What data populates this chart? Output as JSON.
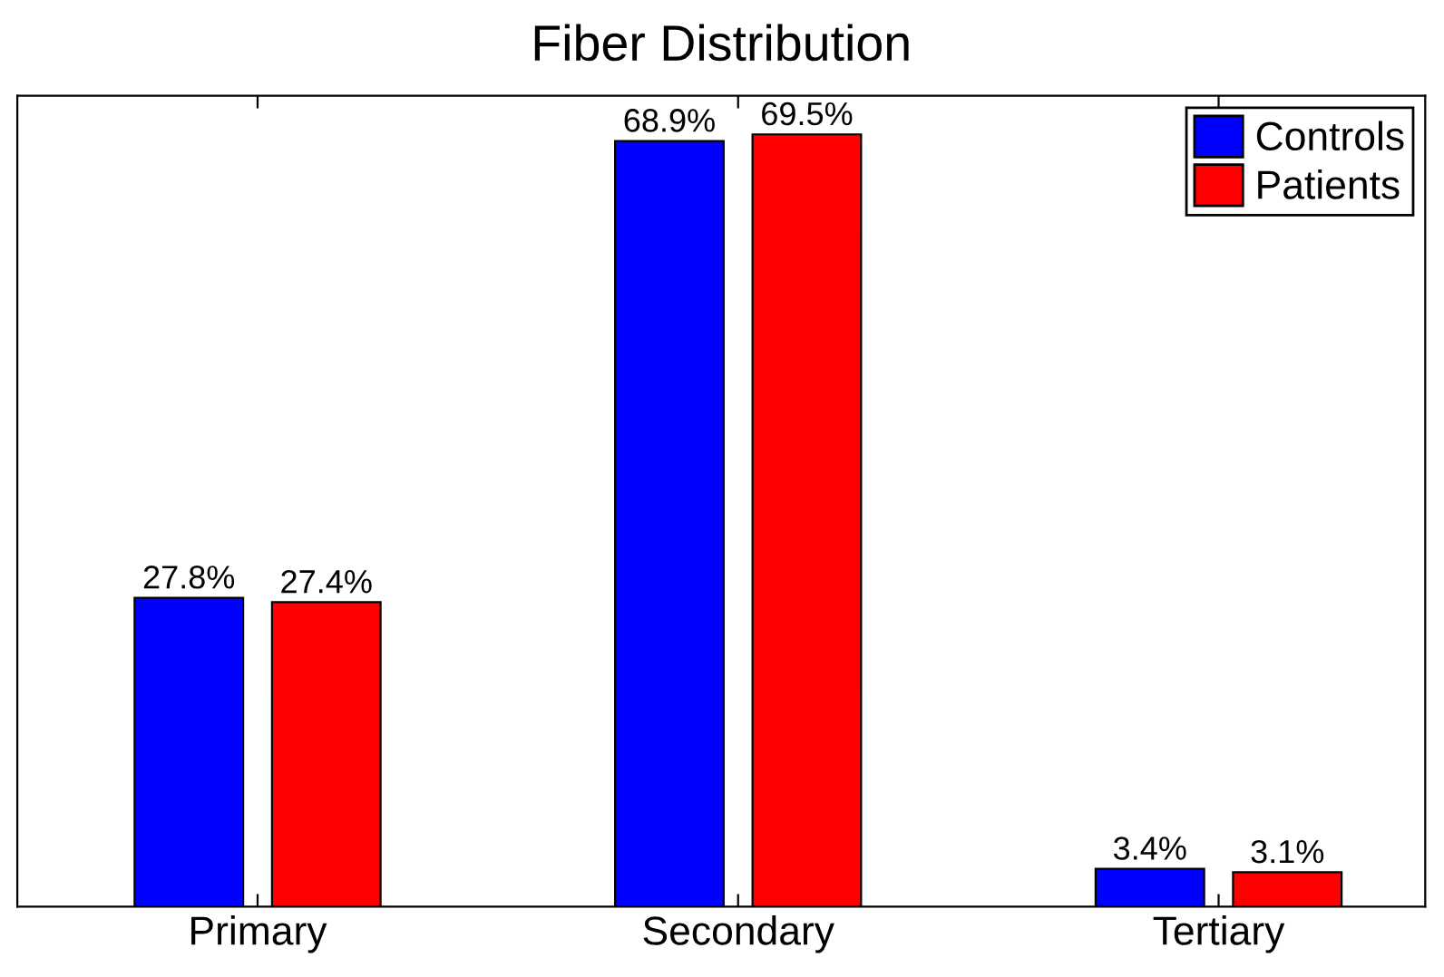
{
  "chart_data": {
    "type": "bar",
    "title": "Fiber Distribution",
    "categories": [
      "Primary",
      "Secondary",
      "Tertiary"
    ],
    "series": [
      {
        "name": "Controls",
        "color": "#0000ff",
        "values": [
          27.8,
          68.9,
          3.4
        ],
        "value_labels": [
          "27.8%",
          "68.9%",
          "3.4%"
        ]
      },
      {
        "name": "Patients",
        "color": "#ff0000",
        "values": [
          27.4,
          69.5,
          3.1
        ],
        "value_labels": [
          "27.4%",
          "69.5%",
          "3.1%"
        ]
      }
    ],
    "legend": "top right",
    "grid": false,
    "tick_labels": "x"
  }
}
